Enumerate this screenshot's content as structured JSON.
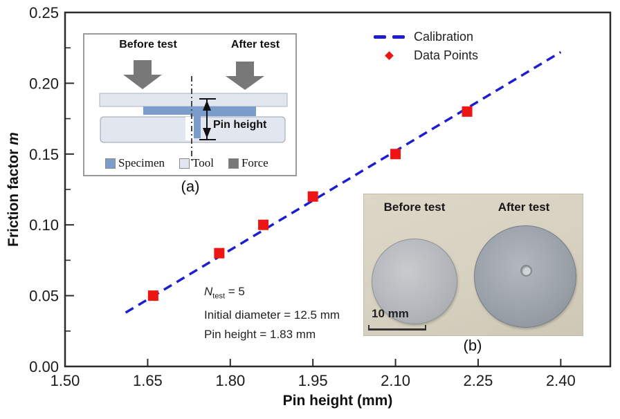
{
  "figure": {
    "background": "#ffffff",
    "axis_color": "#2a2a2a"
  },
  "chart_data": {
    "type": "scatter",
    "xlabel": "Pin height (mm)",
    "ylabel_prefix": "Friction factor ",
    "ylabel_symbol": "m",
    "xlim": [
      1.5,
      2.49
    ],
    "ylim": [
      0.0,
      0.25
    ],
    "x_ticks": [
      1.5,
      1.65,
      1.8,
      1.95,
      2.1,
      2.25,
      2.4
    ],
    "x_tick_labels": [
      "1.50",
      "1.65",
      "1.80",
      "1.95",
      "2.10",
      "2.25",
      "2.40"
    ],
    "y_ticks": [
      0.0,
      0.05,
      0.1,
      0.15,
      0.2,
      0.25
    ],
    "y_tick_labels": [
      "0.00",
      "0.05",
      "0.10",
      "0.15",
      "0.20",
      "0.25"
    ],
    "y_minor_start": 0.025,
    "y_minor_step": 0.05,
    "grid": false,
    "legend_position": "top-right-inside",
    "series": [
      {
        "name": "Calibration",
        "type": "line",
        "style": "dashed",
        "color": "#1e1ecf",
        "x": [
          1.61,
          2.4
        ],
        "y": [
          0.038,
          0.222
        ]
      },
      {
        "name": "Data Points",
        "type": "scatter",
        "marker": "square",
        "color": "#ee1515",
        "points": [
          [
            1.66,
            0.05
          ],
          [
            1.78,
            0.08
          ],
          [
            1.86,
            0.1
          ],
          [
            1.95,
            0.12
          ],
          [
            2.1,
            0.15
          ],
          [
            2.23,
            0.18
          ]
        ]
      }
    ]
  },
  "legend": {
    "calibration": "Calibration",
    "data_points": "Data Points"
  },
  "annotation": {
    "n_symbol": "N",
    "n_sub": "test",
    "n_value": " = 5",
    "line2": "Initial diameter = 12.5 mm",
    "line3": "Pin height = 1.83 mm"
  },
  "inset_a": {
    "caption": "(a)",
    "before_label": "Before test",
    "after_label": "After test",
    "pin_height_label": "Pin height",
    "legend": [
      {
        "name": "Specimen",
        "color": "#7b9dcb"
      },
      {
        "name": "Tool",
        "color": "#e2e6ee"
      },
      {
        "name": "Force",
        "color": "#787878"
      }
    ]
  },
  "inset_b": {
    "caption": "(b)",
    "before_label": "Before test",
    "after_label": "After test",
    "scale_label": "10 mm"
  }
}
